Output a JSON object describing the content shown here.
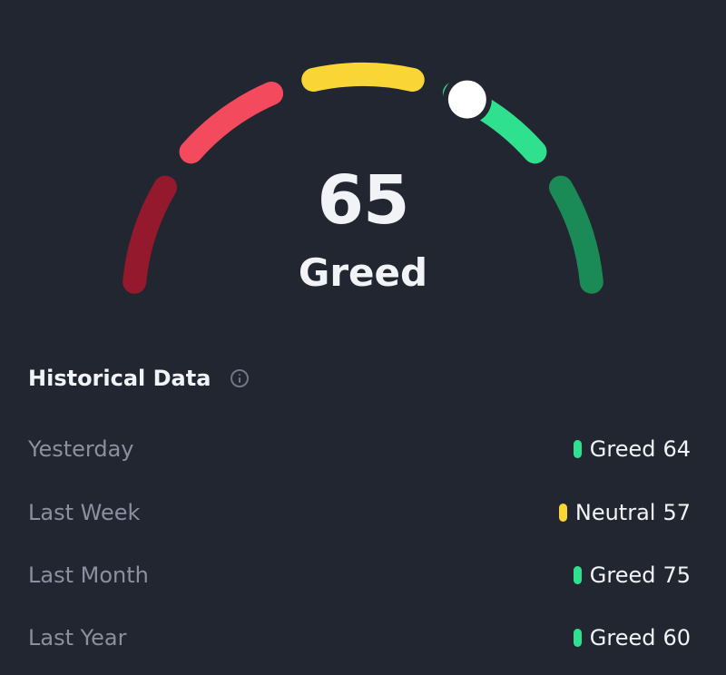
{
  "gauge": {
    "value": 65,
    "label": "Greed",
    "min": 0,
    "max": 100,
    "segments": [
      {
        "name": "extreme-fear",
        "from": 0,
        "to": 20,
        "color": "#95192c"
      },
      {
        "name": "fear",
        "from": 20,
        "to": 40,
        "color": "#f44a5d"
      },
      {
        "name": "neutral",
        "from": 40,
        "to": 60,
        "color": "#f9d535"
      },
      {
        "name": "greed",
        "from": 60,
        "to": 80,
        "color": "#2fe08f"
      },
      {
        "name": "extreme-greed",
        "from": 80,
        "to": 100,
        "color": "#1a8a57"
      }
    ],
    "indicator_color": "#ffffff"
  },
  "historical": {
    "title": "Historical Data",
    "info_icon": "info-icon",
    "rows": [
      {
        "period": "Yesterday",
        "sentiment": "Greed",
        "value": "64",
        "color": "#2fe08f"
      },
      {
        "period": "Last Week",
        "sentiment": "Neutral",
        "value": "57",
        "color": "#f9d535"
      },
      {
        "period": "Last Month",
        "sentiment": "Greed",
        "value": "75",
        "color": "#2fe08f"
      },
      {
        "period": "Last Year",
        "sentiment": "Greed",
        "value": "60",
        "color": "#2fe08f"
      }
    ]
  }
}
